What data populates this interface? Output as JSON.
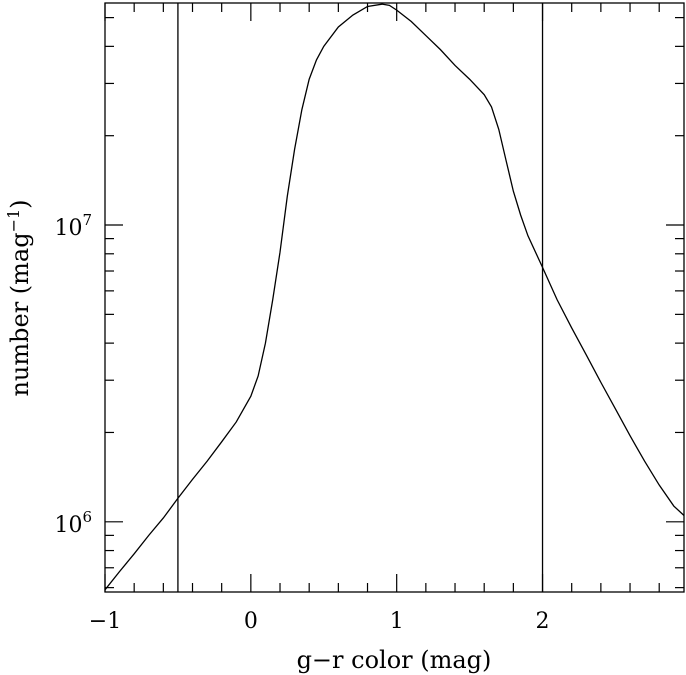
{
  "chart_data": {
    "type": "line",
    "xlabel": "g−r color (mag)",
    "ylabel": {
      "text": "number (mag",
      "superscript": "−1",
      "suffix": ")"
    },
    "xlim": [
      -1.0,
      2.97
    ],
    "ylim": [
      580000,
      56000000
    ],
    "y_scale": "log",
    "grid": false,
    "x_ticks": [
      {
        "value": -1,
        "label": "−1"
      },
      {
        "value": 0,
        "label": "0"
      },
      {
        "value": 1,
        "label": "1"
      },
      {
        "value": 2,
        "label": "2"
      }
    ],
    "y_ticks": [
      {
        "value": 1000000,
        "base": "10",
        "exponent": "6"
      },
      {
        "value": 10000000,
        "base": "10",
        "exponent": "7"
      }
    ],
    "vertical_lines": [
      -0.5,
      2.0
    ],
    "line_color": "#000000",
    "series": [
      {
        "x": [
          -1.0,
          -0.9,
          -0.8,
          -0.7,
          -0.6,
          -0.5,
          -0.4,
          -0.3,
          -0.2,
          -0.1,
          0.0,
          0.05,
          0.1,
          0.15,
          0.2,
          0.25,
          0.3,
          0.35,
          0.4,
          0.45,
          0.5,
          0.6,
          0.7,
          0.8,
          0.9,
          0.95,
          1.0,
          1.1,
          1.2,
          1.3,
          1.4,
          1.5,
          1.6,
          1.65,
          1.7,
          1.75,
          1.8,
          1.85,
          1.9,
          2.0,
          2.1,
          2.2,
          2.3,
          2.4,
          2.5,
          2.6,
          2.7,
          2.8,
          2.9,
          2.97
        ],
        "values": [
          590000,
          680000,
          780000,
          900000,
          1030000,
          1200000,
          1390000,
          1600000,
          1860000,
          2170000,
          2650000,
          3100000,
          4000000,
          5600000,
          8100000,
          12500000,
          18000000,
          24500000,
          31000000,
          36000000,
          40000000,
          46500000,
          51000000,
          54500000,
          55500000,
          55000000,
          53000000,
          48500000,
          43500000,
          39000000,
          34500000,
          31000000,
          27500000,
          25000000,
          21000000,
          16500000,
          13000000,
          10800000,
          9200000,
          7200000,
          5600000,
          4500000,
          3650000,
          2950000,
          2400000,
          1950000,
          1600000,
          1330000,
          1130000,
          1050000
        ]
      }
    ]
  }
}
